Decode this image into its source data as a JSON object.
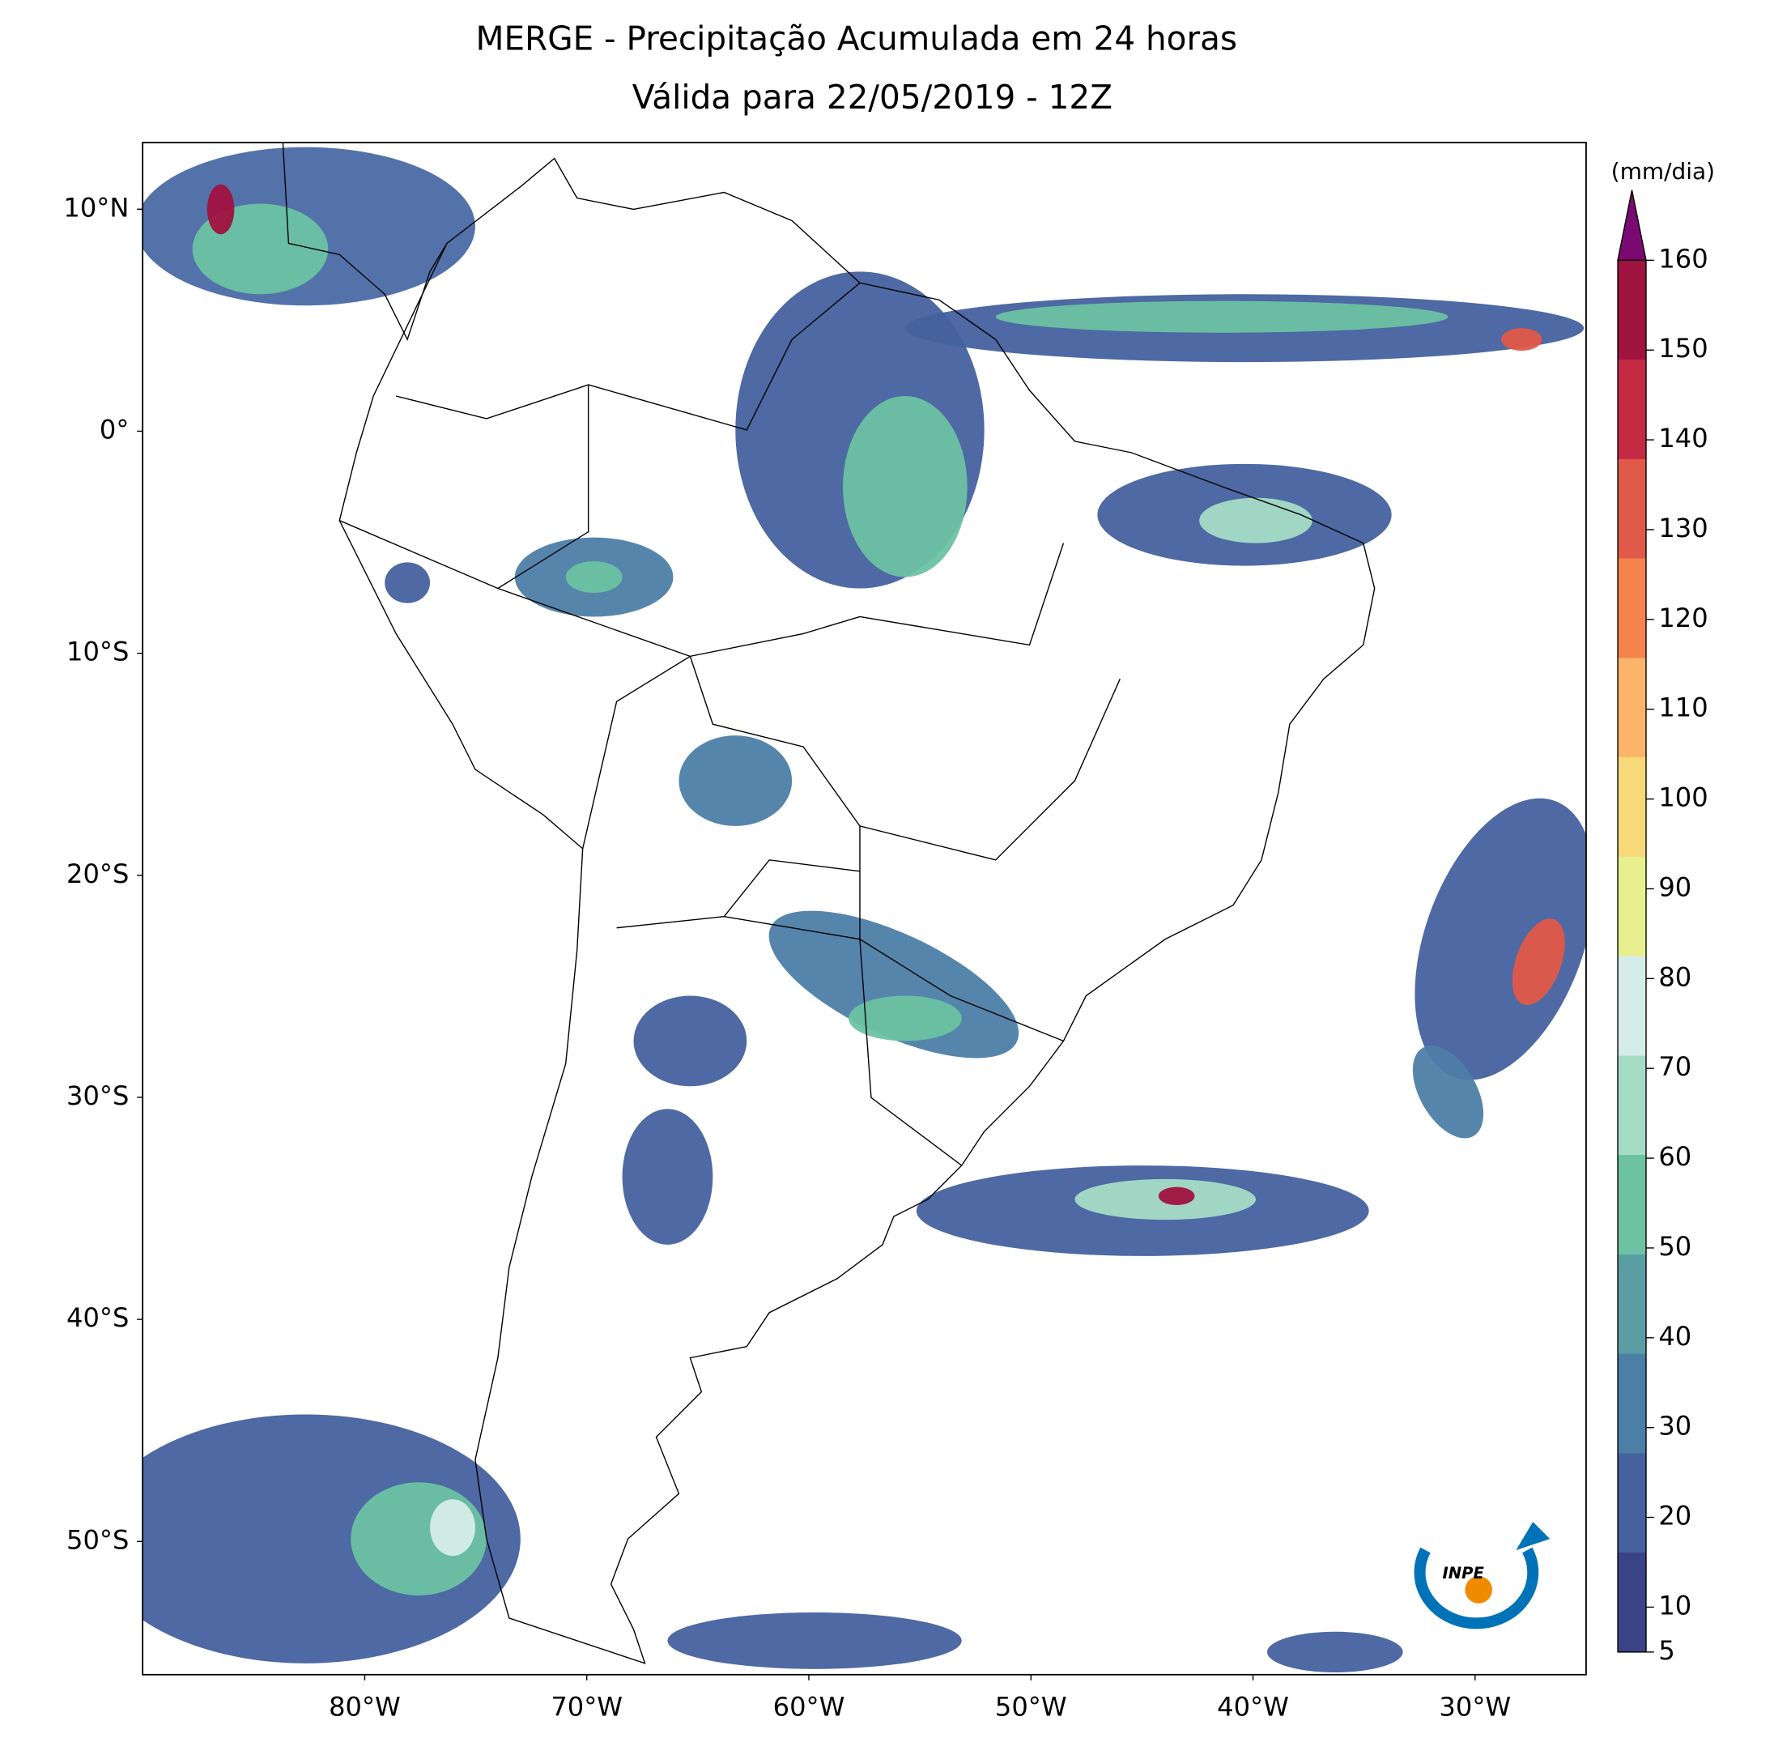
{
  "title": "MERGE - Precipitação Acumulada em 24 horas",
  "subtitle": "Válida para 22/05/2019 - 12Z",
  "map": {
    "xlim": [
      -90,
      -25
    ],
    "ylim": [
      -56,
      13
    ],
    "xticks": [
      {
        "value": -80,
        "label": "80°W"
      },
      {
        "value": -70,
        "label": "70°W"
      },
      {
        "value": -60,
        "label": "60°W"
      },
      {
        "value": -50,
        "label": "50°W"
      },
      {
        "value": -40,
        "label": "40°W"
      },
      {
        "value": -30,
        "label": "30°W"
      }
    ],
    "yticks": [
      {
        "value": 10,
        "label": "10°N"
      },
      {
        "value": 0,
        "label": "0°"
      },
      {
        "value": -10,
        "label": "10°S"
      },
      {
        "value": -20,
        "label": "20°S"
      },
      {
        "value": -30,
        "label": "30°S"
      },
      {
        "value": -40,
        "label": "40°S"
      },
      {
        "value": -50,
        "label": "50°S"
      }
    ]
  },
  "colorbar": {
    "label": "(mm/dia)",
    "lim": [
      5,
      160
    ],
    "ticks": [
      5,
      10,
      20,
      30,
      40,
      50,
      60,
      70,
      80,
      90,
      100,
      110,
      120,
      130,
      140,
      150,
      160
    ],
    "colors": [
      "#3b4387",
      "#45619e",
      "#4d7ea8",
      "#5a9ea4",
      "#6cc2a2",
      "#a5dcc6",
      "#d6ece8",
      "#e6f08e",
      "#f8d97a",
      "#fbb469",
      "#f6834c",
      "#e05a49",
      "#c52a45",
      "#a0123f"
    ],
    "extend_color": "#7a0a72"
  },
  "logo": "INPE"
}
